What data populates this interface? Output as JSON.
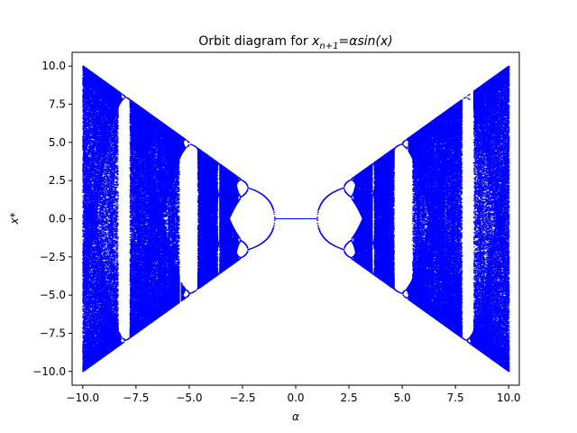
{
  "chart_data": {
    "type": "scatter",
    "title_prefix": "Orbit diagram for ",
    "title_math": {
      "x": "x",
      "sub": "n+1",
      "eq": "=",
      "rhs": "αsin(x)"
    },
    "xlabel": "α",
    "ylabel": "x*",
    "xlim": [
      -10.5,
      10.5
    ],
    "ylim": [
      -10.9,
      10.9
    ],
    "xticks": [
      -10.0,
      -7.5,
      -5.0,
      -2.5,
      0.0,
      2.5,
      5.0,
      7.5,
      10.0
    ],
    "xtick_labels": [
      "−10.0",
      "−7.5",
      "−5.0",
      "−2.5",
      "0.0",
      "2.5",
      "5.0",
      "7.5",
      "10.0"
    ],
    "yticks": [
      -10.0,
      -7.5,
      -5.0,
      -2.5,
      0.0,
      2.5,
      5.0,
      7.5,
      10.0
    ],
    "yticklabels": [
      "−10.0",
      "−7.5",
      "−5.0",
      "−2.5",
      "0.0",
      "2.5",
      "5.0",
      "7.5",
      "10.0"
    ],
    "grid": false,
    "colors": {
      "points": "#0000ff",
      "axes": "#000000"
    },
    "series": [
      {
        "name": "",
        "regions": [
          {
            "kind": "chaotic-band",
            "alpha_range": [
              -10.0,
              -2.75
            ],
            "bound": "|x| <= |alpha|"
          },
          {
            "kind": "chaotic-band",
            "alpha_range": [
              3.1,
              10.0
            ],
            "bound": "|x| <= |alpha|"
          },
          {
            "kind": "fixed-point",
            "alpha_range": [
              -1.0,
              1.0
            ],
            "x": 0.0
          }
        ],
        "period_windows": [
          {
            "alpha": -8.0,
            "x_range": [
              -7.9,
              7.8
            ]
          },
          {
            "alpha": -5.2,
            "x_range": [
              -4.8,
              4.6
            ]
          },
          {
            "alpha": 5.3,
            "x_range": [
              -4.6,
              4.8
            ]
          },
          {
            "alpha": 8.1,
            "x_range": [
              -7.8,
              7.9
            ]
          }
        ],
        "period2_branch_neg": [
          [
            -1.0,
            0.0
          ],
          [
            -1.3,
            0.95
          ],
          [
            -1.6,
            1.45
          ],
          [
            -1.9,
            1.75
          ],
          [
            -2.2,
            1.95
          ],
          [
            -2.5,
            1.95
          ]
        ],
        "period2_branch_neg_lower": [
          [
            -1.0,
            0.0
          ],
          [
            -1.3,
            -0.95
          ],
          [
            -1.6,
            -1.45
          ],
          [
            -1.9,
            -1.75
          ],
          [
            -2.2,
            -1.95
          ],
          [
            -2.5,
            -1.95
          ]
        ],
        "fixed_branch_pos": [
          [
            1.0,
            0.0
          ],
          [
            1.3,
            -1.1
          ],
          [
            1.6,
            -1.55
          ],
          [
            1.9,
            -1.85
          ],
          [
            2.2,
            -2.05
          ],
          [
            2.5,
            -2.2
          ],
          [
            2.8,
            -2.15
          ],
          [
            3.1,
            -1.9
          ]
        ]
      }
    ]
  }
}
